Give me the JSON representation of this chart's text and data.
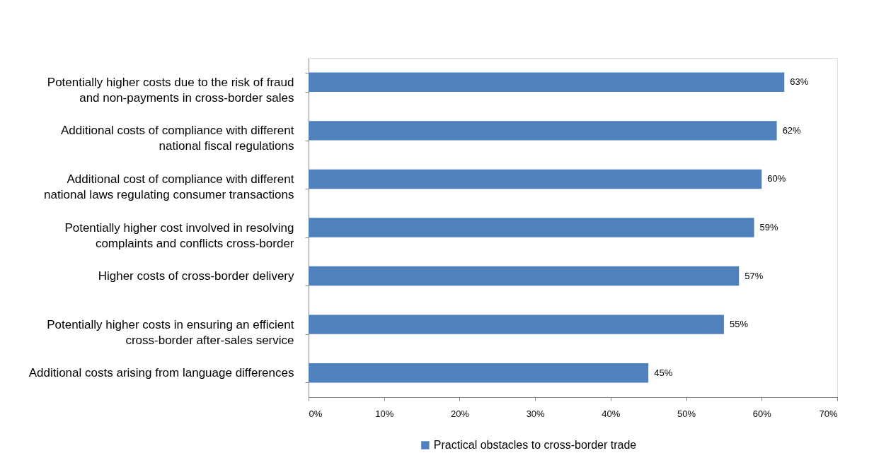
{
  "chart_data": {
    "type": "bar",
    "orientation": "horizontal",
    "categories": [
      "Potentially higher costs due to the risk of fraud and non-payments in cross-border sales",
      "Additional costs of compliance with different national fiscal regulations",
      "Additional cost of compliance with different national laws regulating consumer transactions",
      "Potentially higher cost involved in resolving complaints and conflicts cross-border",
      "Higher costs of cross-border delivery",
      "Potentially higher costs in ensuring an efficient cross-border after-sales service",
      "Additional costs arising from language differences"
    ],
    "series": [
      {
        "name": "Practical obstacles to cross-border trade",
        "color": "#4f81bd",
        "values": [
          63,
          62,
          60,
          59,
          57,
          55,
          45
        ],
        "value_labels": [
          "63%",
          "62%",
          "60%",
          "59%",
          "57%",
          "55%",
          "45%"
        ]
      }
    ],
    "xlim": [
      0,
      70
    ],
    "xticks": [
      {
        "value": 0,
        "label": "0%"
      },
      {
        "value": 10,
        "label": "10%"
      },
      {
        "value": 20,
        "label": "20%"
      },
      {
        "value": 30,
        "label": "30%"
      },
      {
        "value": 40,
        "label": "40%"
      },
      {
        "value": 50,
        "label": "50%"
      },
      {
        "value": 60,
        "label": "60%"
      },
      {
        "value": 70,
        "label": "70%"
      }
    ],
    "grid": false,
    "legend": "bottom"
  }
}
